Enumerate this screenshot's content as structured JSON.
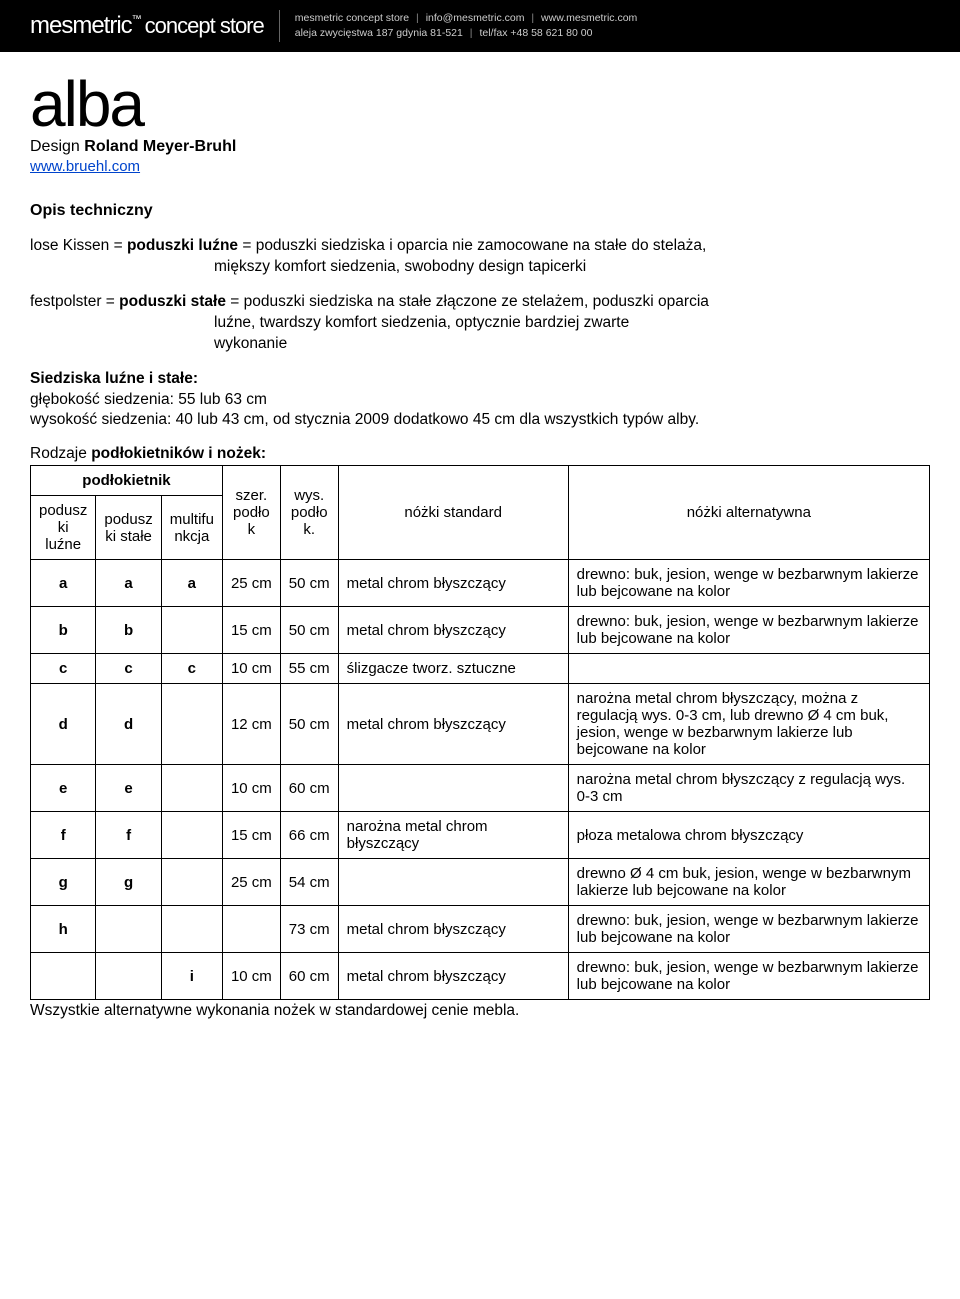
{
  "header": {
    "brand_main": "mesmetric",
    "brand_tm": "™",
    "brand_sub": "concept store",
    "line1_a": "mesmetric concept store",
    "line1_b": "info@mesmetric.com",
    "line1_c": "www.mesmetric.com",
    "line2_a": "aleja zwycięstwa 187 gdynia 81-521",
    "line2_b": "tel/fax +48 58 621 80 00"
  },
  "product": {
    "title": "alba",
    "design_label": "Design",
    "designer": "Roland Meyer-Bruhl",
    "url": "www.bruehl.com"
  },
  "tech_label": "Opis techniczny",
  "desc1_a": "lose Kissen = ",
  "desc1_b": "poduszki luźne",
  "desc1_c": " = poduszki siedziska i oparcia nie zamocowane na stałe do stelaża,",
  "desc1_d": "miększy komfort siedzenia, swobodny design tapicerki",
  "desc2_a": "festpolster = ",
  "desc2_b": "poduszki stałe",
  "desc2_c": " = poduszki siedziska na stałe złączone ze stelażem, poduszki oparcia",
  "desc2_d": "luźne, twardszy komfort siedzenia, optycznie bardziej zwarte",
  "desc2_e": "wykonanie",
  "seats_title": "Siedziska luźne i stałe:",
  "seats_line1": "głębokość siedzenia: 55 lub 63 cm",
  "seats_line2": "wysokość siedzenia: 40 lub 43 cm, od stycznia 2009 dodatkowo 45 cm dla wszystkich typów alby.",
  "types_label_a": "Rodzaje ",
  "types_label_b": "podłokietników i nożek:",
  "table": {
    "h_group": "podłokietnik",
    "h_luzne": "podusz ki luźne",
    "h_stale": "podusz ki stałe",
    "h_multi": "multifu nkcja",
    "h_szer": "szer. podło k",
    "h_wys": "wys. podło k.",
    "h_std": "nóżki standard",
    "h_alt": "nóżki alternatywna",
    "rows": [
      {
        "c1": "a",
        "c2": "a",
        "c3": "a",
        "sz": "25 cm",
        "wy": "50 cm",
        "std": "metal chrom błyszczący",
        "alt": "drewno: buk, jesion, wenge w bezbarwnym lakierze lub bejcowane na kolor"
      },
      {
        "c1": "b",
        "c2": "b",
        "c3": "",
        "sz": "15 cm",
        "wy": "50 cm",
        "std": "metal chrom błyszczący",
        "alt": "drewno: buk, jesion, wenge w bezbarwnym lakierze lub bejcowane na kolor"
      },
      {
        "c1": "c",
        "c2": "c",
        "c3": "c",
        "sz": "10 cm",
        "wy": "55 cm",
        "std": "ślizgacze tworz. sztuczne",
        "alt": ""
      },
      {
        "c1": "d",
        "c2": "d",
        "c3": "",
        "sz": "12 cm",
        "wy": "50 cm",
        "std": "metal chrom błyszczący",
        "alt": "narożna metal chrom błyszczący, można z regulacją wys. 0-3 cm, lub drewno Ø 4 cm buk, jesion, wenge w bezbarwnym lakierze lub bejcowane na kolor"
      },
      {
        "c1": "e",
        "c2": "e",
        "c3": "",
        "sz": "10 cm",
        "wy": "60 cm",
        "std": "",
        "alt": "narożna metal chrom błyszczący z regulacją wys. 0-3 cm"
      },
      {
        "c1": "f",
        "c2": "f",
        "c3": "",
        "sz": "15 cm",
        "wy": "66 cm",
        "std": "narożna metal chrom błyszczący",
        "alt": "płoza metalowa chrom błyszczący"
      },
      {
        "c1": "g",
        "c2": "g",
        "c3": "",
        "sz": "25 cm",
        "wy": "54 cm",
        "std": "",
        "alt": "drewno Ø 4 cm buk, jesion, wenge w bezbarwnym lakierze lub bejcowane na kolor"
      },
      {
        "c1": "h",
        "c2": "",
        "c3": "",
        "sz": "",
        "wy": "73 cm",
        "std": "metal chrom błyszczący",
        "alt": "drewno: buk, jesion, wenge w bezbarwnym lakierze lub bejcowane na kolor"
      },
      {
        "c1": "",
        "c2": "",
        "c3": "i",
        "sz": "10 cm",
        "wy": "60 cm",
        "std": "metal chrom błyszczący",
        "alt": "drewno: buk, jesion, wenge w bezbarwnym lakierze lub bejcowane na kolor"
      }
    ]
  },
  "footnote": "Wszystkie alternatywne wykonania nożek w standardowej cenie mebla."
}
